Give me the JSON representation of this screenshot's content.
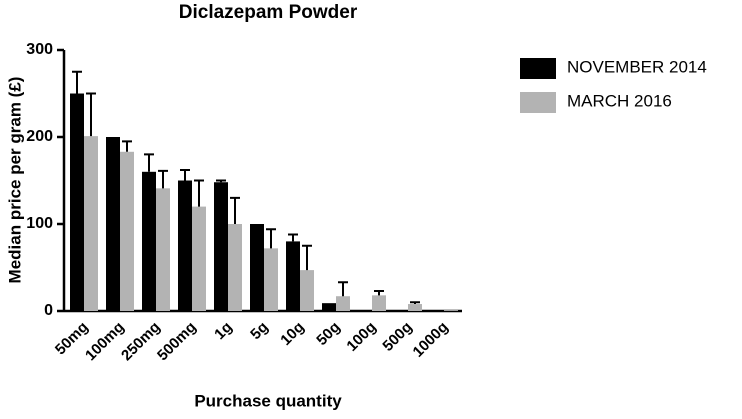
{
  "chart_data": {
    "type": "bar",
    "title": "Diclazepam Powder",
    "x_label": "Purchase quantity",
    "y_label": "Median price per gram (£)",
    "categories": [
      "50mg",
      "100mg",
      "250mg",
      "500mg",
      "1g",
      "5g",
      "10g",
      "50g",
      "100g",
      "500g",
      "1000g"
    ],
    "series": [
      {
        "name": "NOVEMBER 2014",
        "color": "#000000",
        "values": [
          250,
          200,
          160,
          150,
          148,
          100,
          80,
          9,
          null,
          null,
          null
        ],
        "errors": [
          25,
          null,
          20,
          12,
          2,
          null,
          8,
          null,
          null,
          null,
          null
        ]
      },
      {
        "name": "MARCH 2016",
        "color": "#b3b3b3",
        "values": [
          201,
          183,
          141,
          120,
          100,
          72,
          47,
          17,
          18,
          8,
          1
        ],
        "errors": [
          49,
          12,
          20,
          30,
          30,
          22,
          28,
          16,
          5,
          2,
          null
        ]
      }
    ],
    "ylim": [
      0,
      300
    ],
    "yticks": [
      0,
      100,
      200,
      300
    ],
    "legend": "right"
  }
}
